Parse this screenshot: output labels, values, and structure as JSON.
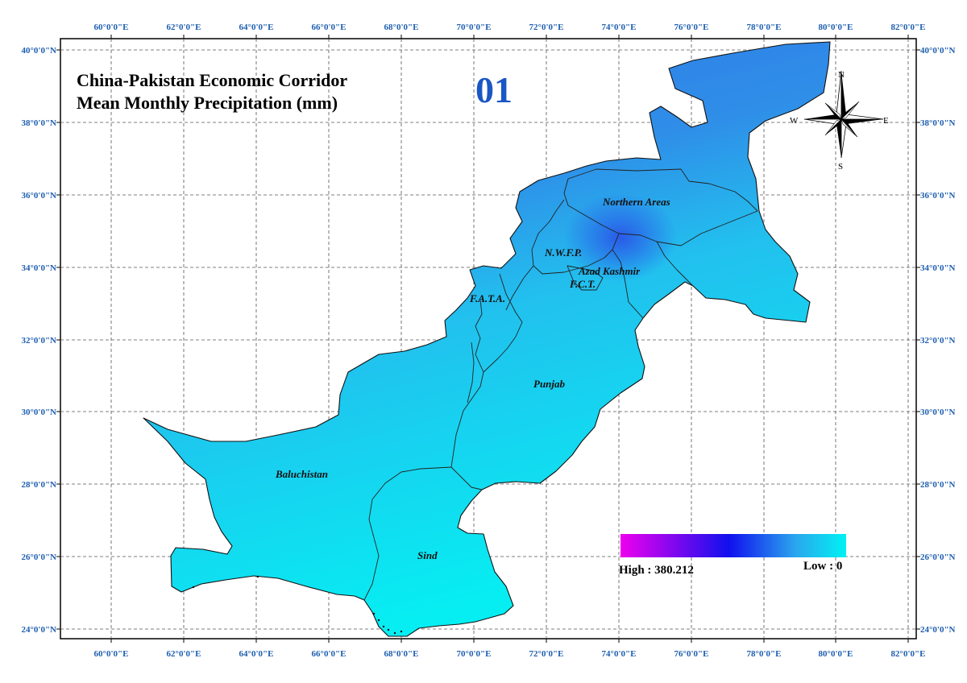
{
  "title": {
    "line1": "China-Pakistan Economic Corridor",
    "line2": "Mean Monthly Precipitation (mm)"
  },
  "month": "01",
  "axes": {
    "longitude_ticks": [
      "60°0'0\"E",
      "62°0'0\"E",
      "64°0'0\"E",
      "66°0'0\"E",
      "68°0'0\"E",
      "70°0'0\"E",
      "72°0'0\"E",
      "74°0'0\"E",
      "76°0'0\"E",
      "78°0'0\"E",
      "80°0'0\"E",
      "82°0'0\"E"
    ],
    "latitude_ticks": [
      "40°0'0\"N",
      "38°0'0\"N",
      "36°0'0\"N",
      "34°0'0\"N",
      "32°0'0\"N",
      "30°0'0\"N",
      "28°0'0\"N",
      "26°0'0\"N",
      "24°0'0\"N"
    ],
    "grid": true
  },
  "regions": [
    {
      "label": "Northern Areas"
    },
    {
      "label": "N.W.F.P."
    },
    {
      "label": "Azad Kashmir"
    },
    {
      "label": "F.C.T."
    },
    {
      "label": "F.A.T.A."
    },
    {
      "label": "Punjab"
    },
    {
      "label": "Baluchistan"
    },
    {
      "label": "Sind"
    }
  ],
  "legend": {
    "high_label": "High : 380.212",
    "low_label": "Low : 0",
    "high_value": 380.212,
    "low_value": 0,
    "colors": [
      "#ee00ee",
      "#1010ee",
      "#20ccee",
      "#00f2f2"
    ]
  },
  "compass": {
    "n": "N",
    "s": "S",
    "e": "E",
    "w": "W"
  },
  "colors": {
    "tick_label": "#1f5fb0",
    "month": "#1a56c4",
    "north": "#2f7be6",
    "south": "#08eaf0",
    "wet_core": "#2c5be8"
  }
}
